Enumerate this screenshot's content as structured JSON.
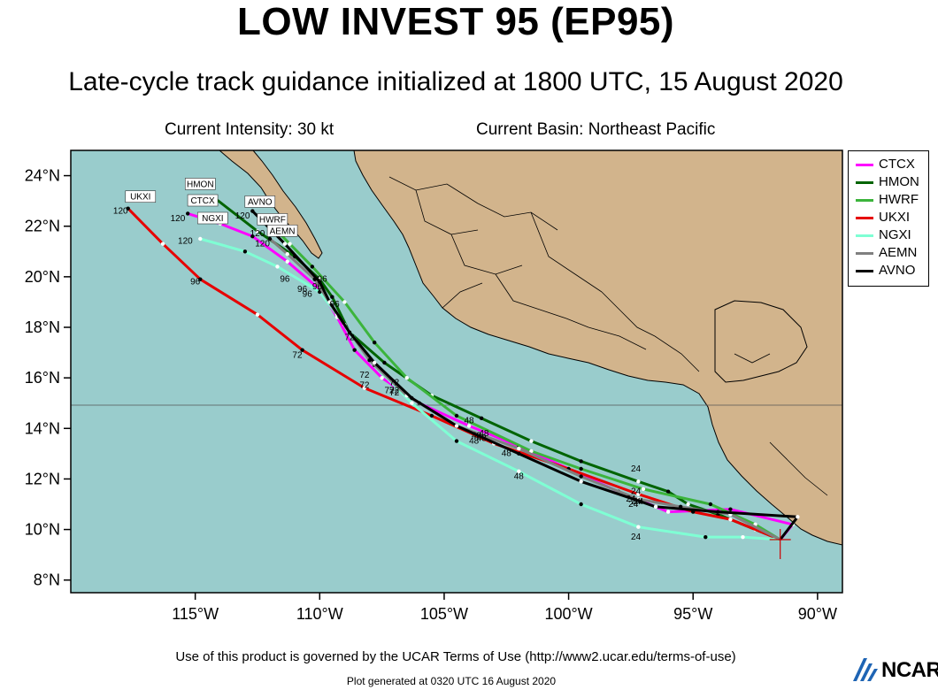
{
  "header": {
    "title": "LOW INVEST 95 (EP95)",
    "subtitle": "Late-cycle track guidance initialized at 1800 UTC, 15 August 2020",
    "intensity": "Current Intensity: 30 kt",
    "basin": "Current Basin: Northeast Pacific"
  },
  "map": {
    "lon_range": [
      -120,
      -89
    ],
    "lat_range": [
      7.5,
      25
    ],
    "lon_ticks": [
      {
        "lon": -115,
        "label": "115°W"
      },
      {
        "lon": -110,
        "label": "110°W"
      },
      {
        "lon": -105,
        "label": "105°W"
      },
      {
        "lon": -100,
        "label": "100°W"
      },
      {
        "lon": -95,
        "label": "95°W"
      },
      {
        "lon": -90,
        "label": "90°W"
      }
    ],
    "lat_ticks": [
      {
        "lat": 8,
        "label": "8°N"
      },
      {
        "lat": 10,
        "label": "10°N"
      },
      {
        "lat": 12,
        "label": "12°N"
      },
      {
        "lat": 14,
        "label": "14°N"
      },
      {
        "lat": 16,
        "label": "16°N"
      },
      {
        "lat": 18,
        "label": "18°N"
      },
      {
        "lat": 20,
        "label": "20°N"
      },
      {
        "lat": 22,
        "label": "22°N"
      },
      {
        "lat": 24,
        "label": "24°N"
      }
    ],
    "ocean_color": "#99cccc",
    "land_color": "#d2b48c",
    "current_position": {
      "lon": -91.5,
      "lat": 9.6,
      "marker_color": "#cc0000"
    },
    "models": [
      {
        "name": "CTCX",
        "color": "#ff00ff",
        "track": [
          [
            -91.5,
            9.6
          ],
          [
            -91.0,
            10.2
          ],
          [
            -93.5,
            10.8
          ],
          [
            -96,
            10.7
          ],
          [
            -98,
            11.5
          ],
          [
            -100,
            12.4
          ],
          [
            -102,
            13.3
          ],
          [
            -104,
            14.1
          ],
          [
            -106,
            15.0
          ],
          [
            -107.5,
            16.0
          ],
          [
            -108.6,
            17.1
          ],
          [
            -109.3,
            18.4
          ],
          [
            -110.0,
            19.5
          ],
          [
            -111.3,
            20.6
          ],
          [
            -112.7,
            21.6
          ],
          [
            -114.0,
            22.1
          ],
          [
            -115.3,
            22.5
          ]
        ],
        "labels": [
          {
            "lon": -97.5,
            "lat": 11.1,
            "text": "24"
          },
          {
            "lon": -103.5,
            "lat": 13.5,
            "text": "48"
          },
          {
            "lon": -108.8,
            "lat": 17.5,
            "text": "72"
          },
          {
            "lon": -110.5,
            "lat": 19.2,
            "text": "96"
          },
          {
            "lon": -115.7,
            "lat": 22.2,
            "text": "120"
          }
        ],
        "tag": {
          "lon": -114.7,
          "lat": 22.9,
          "text": "CTCX"
        }
      },
      {
        "name": "HMON",
        "color": "#006400",
        "track": [
          [
            -91.5,
            9.6
          ],
          [
            -92.5,
            10.0
          ],
          [
            -94,
            10.6
          ],
          [
            -95.2,
            11.0
          ],
          [
            -96,
            11.5
          ],
          [
            -97.2,
            11.9
          ],
          [
            -99.5,
            12.7
          ],
          [
            -101.5,
            13.5
          ],
          [
            -103.5,
            14.4
          ],
          [
            -105.5,
            15.3
          ],
          [
            -107.4,
            16.6
          ],
          [
            -108.8,
            17.8
          ],
          [
            -109.5,
            19.2
          ],
          [
            -110.0,
            19.9
          ],
          [
            -111.0,
            20.8
          ],
          [
            -112.5,
            21.8
          ],
          [
            -114.2,
            23.1
          ]
        ],
        "labels": [
          {
            "lon": -97.3,
            "lat": 12.3,
            "text": "24"
          },
          {
            "lon": -104.0,
            "lat": 14.2,
            "text": "48"
          },
          {
            "lon": -107.2,
            "lat": 15.4,
            "text": "72"
          },
          {
            "lon": -109.4,
            "lat": 18.8,
            "text": "96"
          },
          {
            "lon": -114.6,
            "lat": 22.9,
            "text": "120"
          }
        ],
        "tag": {
          "lon": -114.8,
          "lat": 23.55,
          "text": "HMON"
        }
      },
      {
        "name": "HWRF",
        "color": "#3cb43c",
        "track": [
          [
            -91.5,
            9.6
          ],
          [
            -92.5,
            10.2
          ],
          [
            -94.3,
            11.0
          ],
          [
            -97.0,
            11.6
          ],
          [
            -99.5,
            12.4
          ],
          [
            -101.5,
            13.1
          ],
          [
            -104.5,
            14.5
          ],
          [
            -106.5,
            16.0
          ],
          [
            -107.8,
            17.4
          ],
          [
            -109.0,
            19.0
          ],
          [
            -110.3,
            20.4
          ],
          [
            -111.2,
            21.3
          ],
          [
            -111.9,
            22.0
          ]
        ],
        "labels": [
          {
            "lon": -97.3,
            "lat": 11.4,
            "text": "24"
          },
          {
            "lon": -103.7,
            "lat": 13.6,
            "text": "48"
          },
          {
            "lon": -107.0,
            "lat": 15.3,
            "text": "72"
          },
          {
            "lon": -109.9,
            "lat": 19.8,
            "text": "96"
          },
          {
            "lon": -112.5,
            "lat": 21.6,
            "text": "120"
          }
        ],
        "tag": {
          "lon": -111.9,
          "lat": 22.15,
          "text": "HWRF"
        }
      },
      {
        "name": "UKXI",
        "color": "#e60000",
        "track": [
          [
            -91.5,
            9.6
          ],
          [
            -93.5,
            10.4
          ],
          [
            -95.0,
            10.7
          ],
          [
            -97.2,
            11.4
          ],
          [
            -100.0,
            12.4
          ],
          [
            -103.0,
            13.4
          ],
          [
            -105.5,
            14.5
          ],
          [
            -108.2,
            15.6
          ],
          [
            -110.7,
            17.1
          ],
          [
            -112.5,
            18.5
          ],
          [
            -114.8,
            19.9
          ],
          [
            -116.3,
            21.3
          ],
          [
            -117.7,
            22.7
          ]
        ],
        "labels": [
          {
            "lon": -97.3,
            "lat": 11.0,
            "text": "24"
          },
          {
            "lon": -102.5,
            "lat": 12.9,
            "text": "48"
          },
          {
            "lon": -108.2,
            "lat": 15.6,
            "text": "72"
          },
          {
            "lon": -110.9,
            "lat": 16.8,
            "text": "72"
          },
          {
            "lon": -115.0,
            "lat": 19.7,
            "text": "96"
          },
          {
            "lon": -118.0,
            "lat": 22.5,
            "text": "120"
          }
        ],
        "tag": {
          "lon": -117.2,
          "lat": 23.05,
          "text": "UKXI"
        }
      },
      {
        "name": "NGXI",
        "color": "#7fffd4",
        "track": [
          [
            -91.5,
            9.6
          ],
          [
            -93,
            9.7
          ],
          [
            -94.5,
            9.7
          ],
          [
            -97.2,
            10.1
          ],
          [
            -99.5,
            11.0
          ],
          [
            -102,
            12.3
          ],
          [
            -104.5,
            13.5
          ],
          [
            -106.3,
            15.0
          ],
          [
            -107.8,
            16.5
          ],
          [
            -109.0,
            18.1
          ],
          [
            -110.0,
            19.4
          ],
          [
            -111.7,
            20.4
          ],
          [
            -113.0,
            21.0
          ],
          [
            -114.8,
            21.5
          ]
        ],
        "labels": [
          {
            "lon": -97.3,
            "lat": 9.6,
            "text": "24"
          },
          {
            "lon": -102.0,
            "lat": 12.0,
            "text": "48"
          },
          {
            "lon": -108.2,
            "lat": 16.0,
            "text": "72"
          },
          {
            "lon": -111.4,
            "lat": 19.8,
            "text": "96"
          },
          {
            "lon": -115.4,
            "lat": 21.3,
            "text": "120"
          }
        ],
        "tag": {
          "lon": -114.3,
          "lat": 22.2,
          "text": "NGXI"
        }
      },
      {
        "name": "AEMN",
        "color": "#808080",
        "track": [
          [
            -91.5,
            9.6
          ],
          [
            -93.5,
            10.6
          ],
          [
            -95.5,
            10.9
          ],
          [
            -97.2,
            11.2
          ],
          [
            -99.5,
            12.1
          ],
          [
            -102.0,
            13.2
          ],
          [
            -104.5,
            14.1
          ],
          [
            -106.5,
            15.3
          ],
          [
            -108,
            16.7
          ],
          [
            -109.3,
            18.5
          ],
          [
            -110.2,
            19.9
          ],
          [
            -111.3,
            20.9
          ],
          [
            -112.0,
            21.5
          ]
        ],
        "labels": [
          {
            "lon": -97.4,
            "lat": 10.9,
            "text": "24"
          },
          {
            "lon": -103.4,
            "lat": 13.7,
            "text": "48"
          },
          {
            "lon": -107.0,
            "lat": 15.4,
            "text": "72"
          },
          {
            "lon": -110.7,
            "lat": 19.4,
            "text": "96"
          },
          {
            "lon": -112.3,
            "lat": 21.2,
            "text": "120"
          }
        ],
        "tag": {
          "lon": -111.5,
          "lat": 21.7,
          "text": "AEMN"
        }
      },
      {
        "name": "AVNO",
        "color": "#000000",
        "track": [
          [
            -91.5,
            9.6
          ],
          [
            -90.8,
            10.5
          ],
          [
            -94.0,
            10.7
          ],
          [
            -96.5,
            10.9
          ],
          [
            -97.1,
            11.1
          ],
          [
            -99.5,
            11.9
          ],
          [
            -102.0,
            13.0
          ],
          [
            -104.5,
            14.1
          ],
          [
            -106.3,
            15.2
          ],
          [
            -107.8,
            16.6
          ],
          [
            -108.8,
            17.8
          ],
          [
            -109.6,
            19.0
          ],
          [
            -110.0,
            19.8
          ],
          [
            -111.4,
            21.3
          ],
          [
            -112.7,
            22.6
          ]
        ],
        "labels": [
          {
            "lon": -97.2,
            "lat": 11.0,
            "text": "24"
          },
          {
            "lon": -103.8,
            "lat": 13.4,
            "text": "48"
          },
          {
            "lon": -107.0,
            "lat": 15.7,
            "text": "72"
          },
          {
            "lon": -110.1,
            "lat": 19.5,
            "text": "96"
          },
          {
            "lon": -113.1,
            "lat": 22.3,
            "text": "120"
          }
        ],
        "tag": {
          "lon": -112.4,
          "lat": 22.85,
          "text": "AVNO"
        }
      }
    ]
  },
  "legend": {
    "items": [
      {
        "name": "CTCX",
        "color": "#ff00ff"
      },
      {
        "name": "HMON",
        "color": "#006400"
      },
      {
        "name": "HWRF",
        "color": "#3cb43c"
      },
      {
        "name": "UKXI",
        "color": "#e60000"
      },
      {
        "name": "NGXI",
        "color": "#7fffd4"
      },
      {
        "name": "AEMN",
        "color": "#808080"
      },
      {
        "name": "AVNO",
        "color": "#000000"
      }
    ]
  },
  "footer": {
    "terms": "Use of this product is governed by the UCAR Terms of Use (http://www2.ucar.edu/terms-of-use)",
    "generated": "Plot generated at 0320 UTC  16 August 2020",
    "logo_text": "NCAR"
  }
}
